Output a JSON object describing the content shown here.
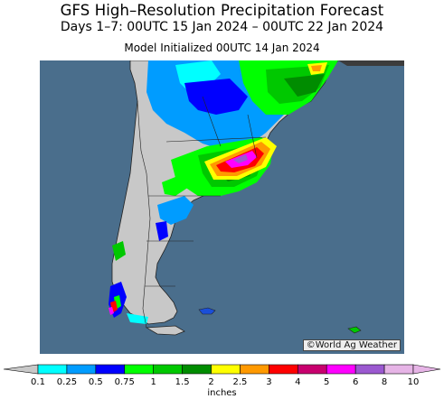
{
  "title": "GFS High–Resolution Precipitation Forecast",
  "subtitle": "Days 1–7: 00UTC 15 Jan 2024 – 00UTC 22 Jan 2024",
  "init_line": "Model Initialized 00UTC 14 Jan 2024",
  "credit": "©World Ag Weather",
  "legend": {
    "units": "inches",
    "ticks": [
      "0.1",
      "0.25",
      "0.5",
      "0.75",
      "1",
      "1.5",
      "2",
      "2.5",
      "3",
      "4",
      "5",
      "6",
      "8",
      "10"
    ],
    "colors": [
      "#00ffff",
      "#009cff",
      "#0000ff",
      "#00ff00",
      "#00c800",
      "#008c00",
      "#ffff00",
      "#ff9900",
      "#ff0000",
      "#c8006e",
      "#ff00ff",
      "#9b59d0",
      "#e6b4e6"
    ]
  },
  "colors": {
    "ocean": "#4a6e8c",
    "land_no_precip": "#c8c8c8",
    "outside_domain": "#3c3c3c"
  }
}
